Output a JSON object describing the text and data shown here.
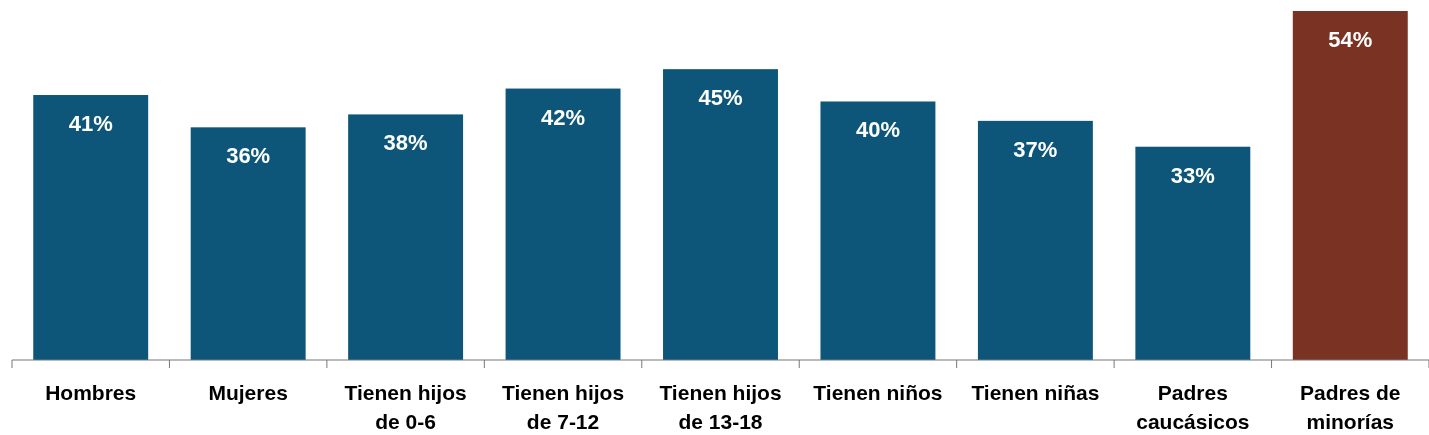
{
  "chart_data": {
    "type": "bar",
    "categories": [
      "Hombres",
      "Mujeres",
      "Tienen hijos de 0-6",
      "Tienen hijos de 7-12",
      "Tienen hijos de 13-18",
      "Tienen niños",
      "Tienen niñas",
      "Padres caucásicos",
      "Padres de minorías"
    ],
    "values": [
      41,
      36,
      38,
      42,
      45,
      40,
      37,
      33,
      54
    ],
    "colors": [
      "#0d5679",
      "#0d5679",
      "#0d5679",
      "#0d5679",
      "#0d5679",
      "#0d5679",
      "#0d5679",
      "#0d5679",
      "#7a3323"
    ],
    "value_labels": [
      "41%",
      "36%",
      "38%",
      "42%",
      "45%",
      "40%",
      "37%",
      "33%",
      "54%"
    ]
  }
}
